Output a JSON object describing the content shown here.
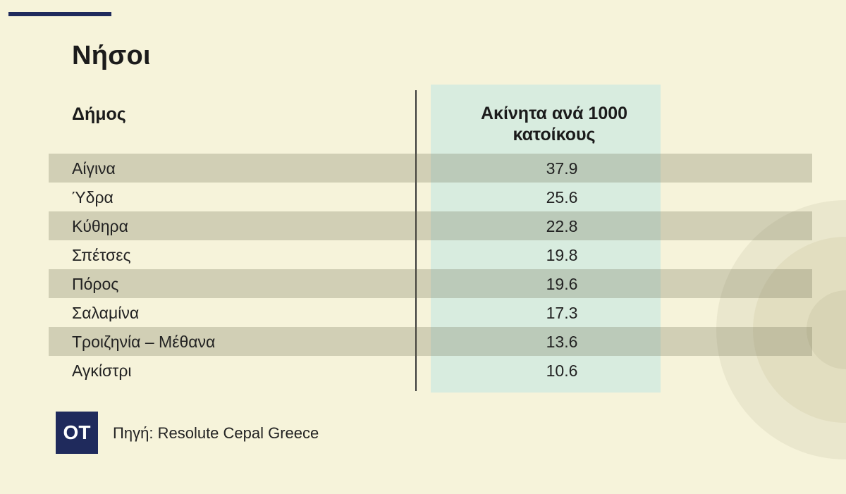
{
  "title": "Νήσοι",
  "header": {
    "name_col": "Δήμος",
    "value_col_line1": "Ακίνητα ανά 1000",
    "value_col_line2": "κατοίκους"
  },
  "rows": [
    {
      "name": "Αίγινα",
      "value": "37.9"
    },
    {
      "name": "Ύδρα",
      "value": "25.6"
    },
    {
      "name": "Κύθηρα",
      "value": "22.8"
    },
    {
      "name": "Σπέτσες",
      "value": "19.8"
    },
    {
      "name": "Πόρος",
      "value": "19.6"
    },
    {
      "name": "Σαλαμίνα",
      "value": "17.3"
    },
    {
      "name": "Τροιζηνία – Μέθανα",
      "value": "13.6"
    },
    {
      "name": "Αγκίστρι",
      "value": "10.6"
    }
  ],
  "footer": {
    "logo_text": "OT",
    "source": "Πηγή: Resolute Cepal Greece"
  },
  "colors": {
    "background": "#f6f3da",
    "accent_navy": "#1f2a5c",
    "value_column": "#d8ecdf"
  },
  "chart_data": {
    "type": "table",
    "title": "Νήσοι",
    "columns": [
      "Δήμος",
      "Ακίνητα ανά 1000 κατοίκους"
    ],
    "categories": [
      "Αίγινα",
      "Ύδρα",
      "Κύθηρα",
      "Σπέτσες",
      "Πόρος",
      "Σαλαμίνα",
      "Τροιζηνία – Μέθανα",
      "Αγκίστρι"
    ],
    "values": [
      37.9,
      25.6,
      22.8,
      19.8,
      19.6,
      17.3,
      13.6,
      10.6
    ]
  }
}
